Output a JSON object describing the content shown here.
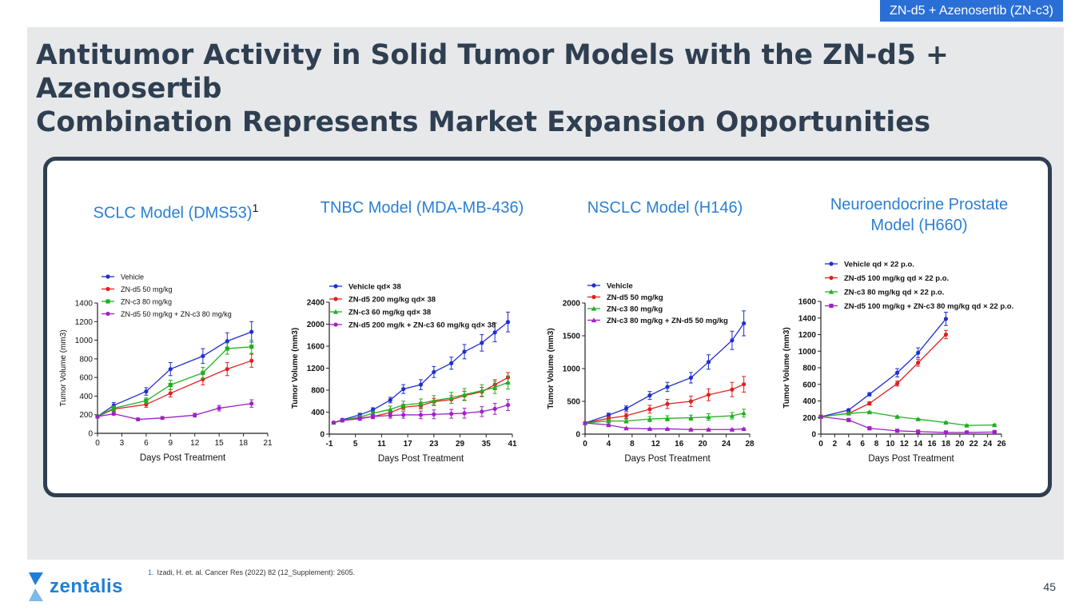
{
  "header_tag": "ZN-d5 + Azenosertib (ZN-c3)",
  "title_line1": "Antitumor Activity in Solid Tumor Models with the ZN-d5 + Azenosertib",
  "title_line2": "Combination Represents Market Expansion Opportunities",
  "chart_titles": [
    {
      "main": "SCLC Model (DMS53)",
      "sup": "1"
    },
    {
      "main": "TNBC Model (MDA-MB-436)",
      "sup": ""
    },
    {
      "main": "NSCLC Model (H146)",
      "sup": ""
    },
    {
      "main": "Neuroendocrine Prostate",
      "main2": "Model (H660)",
      "sup": ""
    }
  ],
  "footnote": {
    "num": "1.",
    "text": "Izadi, H. et. al. Cancer Res (2022) 82 (12_Supplement): 2605."
  },
  "logo_text": "zentalis",
  "page_number": "45",
  "colors": {
    "accent": "#2a6fd6",
    "title": "#2f3f51",
    "vehicle": "#1f2fd0",
    "zn_d5": "#e02020",
    "zn_c3": "#20b020",
    "combo": "#a020c8"
  },
  "chart_data": [
    {
      "type": "line",
      "xlabel": "Days Post Treatment",
      "ylabel": "Tumor Volume (mm3)",
      "xlim": [
        0,
        21
      ],
      "ylim": [
        0,
        1400
      ],
      "xticks": [
        0,
        3,
        6,
        9,
        12,
        15,
        18,
        21
      ],
      "yticks": [
        0,
        200,
        400,
        600,
        800,
        1000,
        1200,
        1400
      ],
      "bold_legend": false,
      "series": [
        {
          "name": "Vehicle",
          "color": "#1f2fd0",
          "marker": "circle",
          "x": [
            0,
            2,
            6,
            9,
            13,
            16,
            19
          ],
          "y": [
            180,
            300,
            450,
            690,
            830,
            990,
            1090
          ],
          "err": [
            15,
            30,
            40,
            70,
            80,
            90,
            110
          ]
        },
        {
          "name": "ZN-d5 50 mg/kg",
          "color": "#e02020",
          "marker": "circle",
          "x": [
            0,
            2,
            6,
            9,
            13,
            16,
            19
          ],
          "y": [
            180,
            260,
            310,
            430,
            580,
            690,
            780
          ],
          "err": [
            15,
            25,
            30,
            40,
            60,
            70,
            70
          ]
        },
        {
          "name": "ZN-c3 80 mg/kg",
          "color": "#20b020",
          "marker": "square",
          "x": [
            0,
            2,
            6,
            9,
            13,
            16,
            19
          ],
          "y": [
            180,
            270,
            350,
            520,
            650,
            910,
            930
          ],
          "err": [
            15,
            25,
            30,
            50,
            60,
            60,
            70
          ]
        },
        {
          "name": "ZN-d5 50 mg/kg + ZN-c3 80 mg/kg",
          "color": "#a020c8",
          "marker": "circle",
          "x": [
            0,
            2,
            5,
            8,
            12,
            15,
            19
          ],
          "y": [
            180,
            210,
            150,
            165,
            195,
            270,
            320
          ],
          "err": [
            10,
            15,
            15,
            15,
            20,
            30,
            40
          ]
        }
      ]
    },
    {
      "type": "line",
      "xlabel": "Days Post Treatment",
      "ylabel": "Tumor Volume (mm3)",
      "xlim": [
        -1,
        41
      ],
      "ylim": [
        0,
        2400
      ],
      "xticks": [
        -1,
        5,
        11,
        17,
        23,
        29,
        35,
        41
      ],
      "yticks": [
        0,
        400,
        800,
        1200,
        1600,
        2000,
        2400
      ],
      "bold_legend": true,
      "series": [
        {
          "name": "Vehicle qd× 38",
          "color": "#1f2fd0",
          "marker": "circle",
          "x": [
            0,
            2,
            6,
            9,
            13,
            16,
            20,
            23,
            27,
            30,
            34,
            37,
            40
          ],
          "y": [
            210,
            260,
            350,
            440,
            620,
            820,
            900,
            1130,
            1290,
            1500,
            1660,
            1850,
            2040
          ],
          "err": [
            15,
            20,
            30,
            40,
            50,
            80,
            90,
            100,
            110,
            130,
            150,
            170,
            180
          ]
        },
        {
          "name": "ZN-d5 200 mg/kg qd× 38",
          "color": "#e02020",
          "marker": "circle",
          "x": [
            0,
            2,
            6,
            9,
            13,
            16,
            20,
            23,
            27,
            30,
            34,
            37,
            40
          ],
          "y": [
            210,
            250,
            290,
            320,
            390,
            490,
            520,
            590,
            630,
            700,
            770,
            900,
            1030
          ],
          "err": [
            15,
            20,
            25,
            30,
            40,
            50,
            60,
            60,
            70,
            80,
            80,
            90,
            90
          ]
        },
        {
          "name": "ZN-c3 60 mg/kg qd× 38",
          "color": "#20b020",
          "marker": "triangle",
          "x": [
            0,
            2,
            6,
            9,
            13,
            16,
            20,
            23,
            27,
            30,
            34,
            37,
            40
          ],
          "y": [
            210,
            250,
            310,
            380,
            450,
            530,
            560,
            610,
            660,
            720,
            790,
            850,
            940
          ],
          "err": [
            15,
            20,
            30,
            40,
            60,
            70,
            80,
            90,
            100,
            110,
            110,
            110,
            120
          ]
        },
        {
          "name": "ZN-d5 200 mg/k + ZN-c3 60 mg/kg  qd× 38",
          "color": "#a020c8",
          "marker": "circle",
          "x": [
            0,
            2,
            6,
            9,
            13,
            16,
            20,
            23,
            27,
            30,
            34,
            37,
            40
          ],
          "y": [
            210,
            250,
            280,
            320,
            340,
            350,
            350,
            360,
            370,
            380,
            410,
            460,
            530
          ],
          "err": [
            15,
            20,
            30,
            40,
            50,
            60,
            70,
            80,
            80,
            90,
            90,
            100,
            100
          ]
        }
      ]
    },
    {
      "type": "line",
      "xlabel": "Days Post Treatment",
      "ylabel": "Tumor Volume (mm3)",
      "xlim": [
        0,
        28
      ],
      "ylim": [
        0,
        2000
      ],
      "xticks": [
        0,
        4,
        8,
        12,
        16,
        20,
        24,
        28
      ],
      "yticks": [
        0,
        500,
        1000,
        1500,
        2000
      ],
      "bold_legend": true,
      "series": [
        {
          "name": "Vehicle",
          "color": "#1f2fd0",
          "marker": "circle",
          "x": [
            0,
            4,
            7,
            11,
            14,
            18,
            21,
            25,
            27
          ],
          "y": [
            170,
            290,
            390,
            590,
            720,
            860,
            1100,
            1430,
            1690
          ],
          "err": [
            15,
            30,
            40,
            60,
            70,
            80,
            110,
            140,
            190
          ]
        },
        {
          "name": "ZN-d5 50 mg/kg",
          "color": "#e02020",
          "marker": "circle",
          "x": [
            0,
            4,
            7,
            11,
            14,
            18,
            21,
            25,
            27
          ],
          "y": [
            170,
            240,
            280,
            380,
            460,
            500,
            600,
            680,
            760
          ],
          "err": [
            15,
            30,
            40,
            60,
            70,
            80,
            90,
            110,
            120
          ]
        },
        {
          "name": "ZN-c3 80 mg/kg",
          "color": "#20b020",
          "marker": "triangle",
          "x": [
            0,
            4,
            7,
            11,
            14,
            18,
            21,
            25,
            27
          ],
          "y": [
            170,
            200,
            200,
            230,
            240,
            250,
            260,
            280,
            320
          ],
          "err": [
            15,
            20,
            30,
            40,
            40,
            40,
            50,
            50,
            60
          ]
        },
        {
          "name": "ZN-c3 80 mg/kg + ZN-d5 50 mg/kg",
          "color": "#a020c8",
          "marker": "triangle",
          "x": [
            0,
            4,
            7,
            11,
            14,
            18,
            21,
            25,
            27
          ],
          "y": [
            170,
            140,
            90,
            80,
            80,
            70,
            70,
            70,
            80
          ],
          "err": [
            15,
            15,
            10,
            10,
            10,
            10,
            10,
            10,
            10
          ]
        }
      ]
    },
    {
      "type": "line",
      "xlabel": "Days Post Treatment",
      "ylabel": "Tumor Volume (mm3)",
      "xlim": [
        0,
        26
      ],
      "ylim": [
        0,
        1600
      ],
      "xticks": [
        0,
        2,
        4,
        6,
        8,
        10,
        12,
        14,
        16,
        18,
        20,
        22,
        24,
        26
      ],
      "yticks": [
        0,
        200,
        400,
        600,
        800,
        1000,
        1200,
        1400,
        1600
      ],
      "bold_legend": true,
      "series": [
        {
          "name": "Vehicle qd × 22 p.o.",
          "color": "#1f2fd0",
          "marker": "circle",
          "x": [
            0,
            4,
            7,
            11,
            14,
            18
          ],
          "y": [
            210,
            290,
            480,
            740,
            980,
            1390
          ],
          "err": [
            10,
            15,
            20,
            50,
            60,
            80
          ]
        },
        {
          "name": "ZN-d5 100 mg/kg qd × 22 p.o.",
          "color": "#e02020",
          "marker": "circle",
          "x": [
            0,
            4,
            7,
            11,
            14,
            18
          ],
          "y": [
            210,
            250,
            370,
            610,
            860,
            1200
          ],
          "err": [
            10,
            15,
            20,
            30,
            40,
            50
          ]
        },
        {
          "name": "ZN-c3 80 mg/kg qd × 22 p.o.",
          "color": "#20b020",
          "marker": "triangle",
          "x": [
            0,
            4,
            7,
            11,
            14,
            18,
            21,
            25
          ],
          "y": [
            210,
            250,
            265,
            210,
            180,
            140,
            105,
            110
          ],
          "err": [
            10,
            10,
            10,
            10,
            10,
            10,
            10,
            10
          ]
        },
        {
          "name": "ZN-d5 100 mg/kg + ZN-c3 80 mg/kg qd × 22 p.o.",
          "color": "#a020c8",
          "marker": "square",
          "x": [
            0,
            4,
            7,
            11,
            14,
            18,
            21,
            25
          ],
          "y": [
            210,
            170,
            70,
            40,
            30,
            20,
            20,
            25
          ],
          "err": [
            10,
            10,
            10,
            8,
            5,
            5,
            5,
            5
          ]
        }
      ]
    }
  ]
}
